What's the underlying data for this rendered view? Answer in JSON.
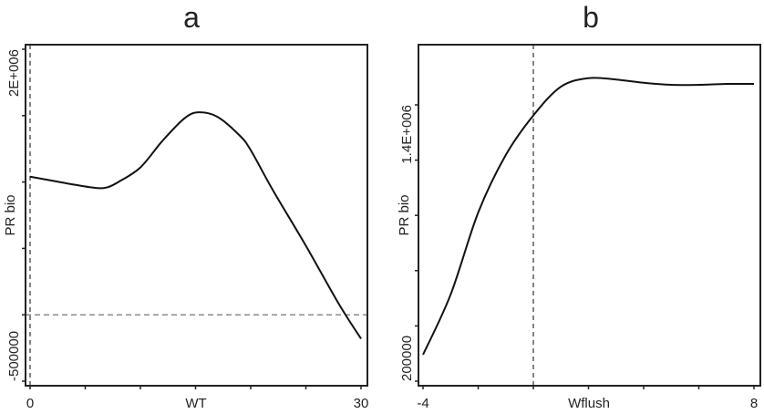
{
  "chart_data": [
    {
      "type": "line",
      "title": "a",
      "xlabel": "WT",
      "ylabel": "PR bio",
      "xlim": [
        0,
        30
      ],
      "ylim": [
        -500000,
        2000000
      ],
      "xticks": [
        0,
        5,
        10,
        15,
        20,
        25,
        30
      ],
      "xtick_labels": [
        "0",
        "",
        "",
        "",
        "",
        "",
        "30"
      ],
      "yticks": [
        -500000,
        0,
        500000,
        1000000,
        1500000,
        2000000
      ],
      "ytick_labels": [
        "-500000",
        "",
        "",
        "",
        "",
        "2E+006"
      ],
      "ref_lines": {
        "vertical_x": 0,
        "horizontal_y": 0
      },
      "grid": false,
      "x": [
        0,
        2,
        4,
        6,
        7,
        8,
        10,
        12,
        14,
        15.3,
        17,
        19,
        20,
        22,
        25,
        28,
        30
      ],
      "y": [
        1040000,
        1010000,
        980000,
        955000,
        960000,
        1000000,
        1110000,
        1310000,
        1480000,
        1525000,
        1490000,
        1350000,
        1240000,
        940000,
        520000,
        80000,
        -180000
      ]
    },
    {
      "type": "line",
      "title": "b",
      "xlabel": "Wflush",
      "ylabel": "PR bio",
      "xlim": [
        -4,
        8
      ],
      "ylim": [
        200000,
        1400000
      ],
      "xticks": [
        -4,
        -2,
        0,
        2,
        4,
        6,
        8
      ],
      "xtick_labels": [
        "-4",
        "",
        "",
        "",
        "",
        "",
        "8"
      ],
      "yticks": [
        200000,
        440000,
        680000,
        920000,
        1160000,
        1400000
      ],
      "ytick_labels": [
        "200000",
        "",
        "",
        "",
        "",
        "1.4E+006"
      ],
      "ref_lines": {
        "vertical_x": 0
      },
      "grid": false,
      "x": [
        -4,
        -3,
        -2,
        -1,
        0,
        1,
        2,
        3,
        4,
        5,
        6,
        7,
        8
      ],
      "y": [
        315000,
        576000,
        932000,
        1182000,
        1354000,
        1479000,
        1516000,
        1510000,
        1496000,
        1487000,
        1487000,
        1491000,
        1491000
      ]
    }
  ]
}
